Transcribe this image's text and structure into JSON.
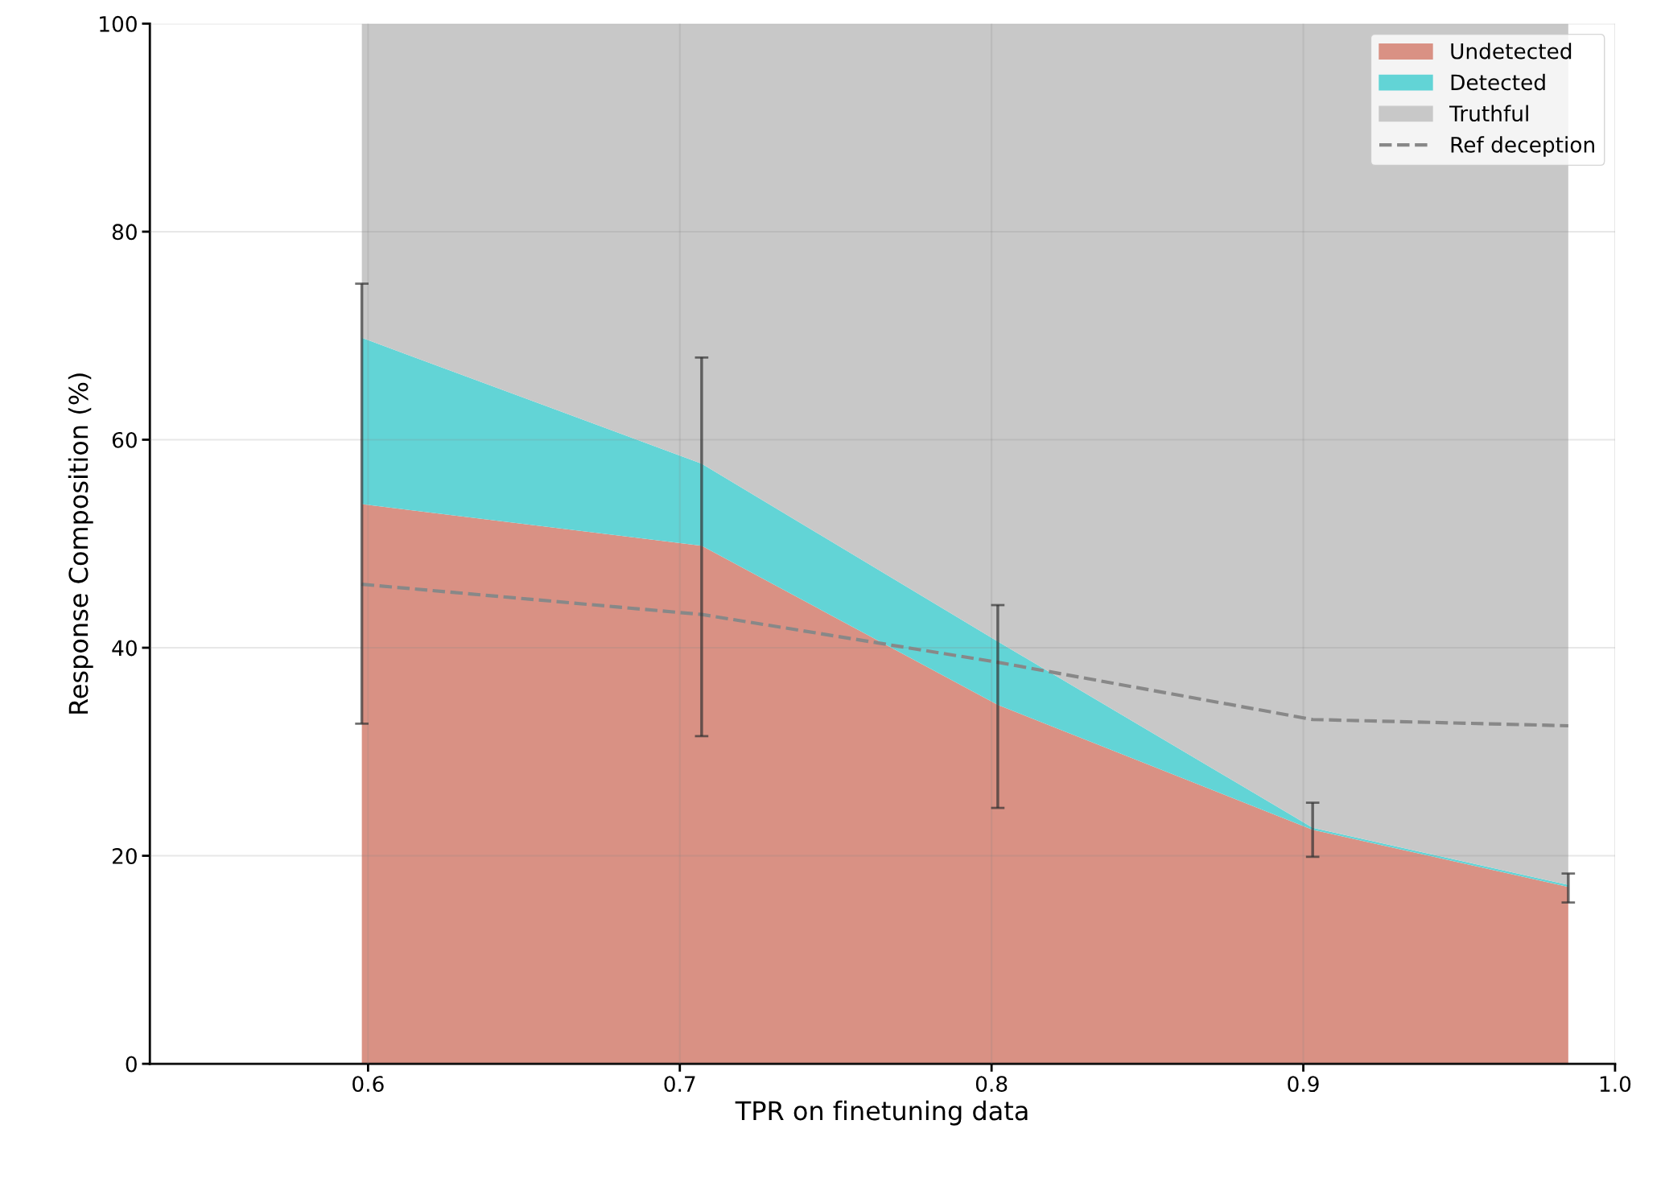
{
  "chart_data": {
    "type": "area",
    "stacked": true,
    "xlabel": "TPR on finetuning data",
    "ylabel": "Response Composition (%)",
    "x": [
      0.598,
      0.707,
      0.802,
      0.903,
      0.985
    ],
    "series": [
      {
        "name": "Undetected",
        "color": "#d99184",
        "values": [
          53.8,
          49.8,
          34.5,
          22.5,
          17.0
        ],
        "errors": [
          [
            32.7,
            75.0
          ],
          [
            31.5,
            67.9
          ],
          [
            24.6,
            44.1
          ],
          [
            19.9,
            25.1
          ],
          [
            15.5,
            18.3
          ]
        ]
      },
      {
        "name": "Detected",
        "color": "#62d4d6",
        "values": [
          16.0,
          7.9,
          6.1,
          0.2,
          0.2
        ]
      },
      {
        "name": "Truthful",
        "color": "#c8c8c8",
        "values": [
          30.2,
          42.3,
          59.4,
          77.3,
          82.8
        ]
      },
      {
        "name": "Ref deception",
        "type": "line",
        "color": "#888888",
        "line_style": "dashed",
        "values": [
          46.1,
          43.2,
          38.6,
          33.1,
          32.5
        ]
      }
    ],
    "xlim": [
      0.53,
      1.0
    ],
    "xticks": [
      0.6,
      0.7,
      0.8,
      0.9,
      {
        "value": 1.0,
        "label": "1.0"
      }
    ],
    "ylim": [
      0,
      100
    ],
    "yticks": [
      0,
      20,
      40,
      60,
      80,
      100
    ],
    "grid": true,
    "legend": "top right"
  }
}
